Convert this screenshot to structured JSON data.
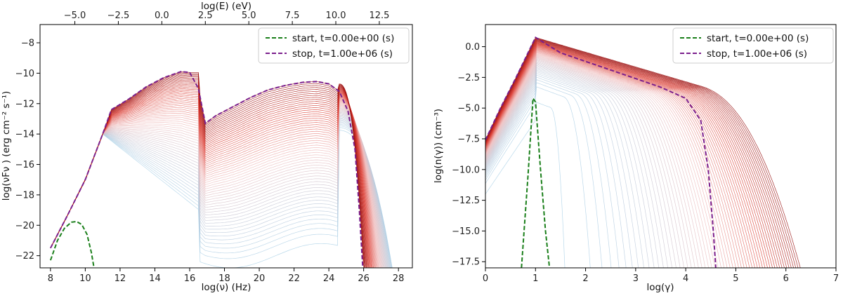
{
  "chart_data": [
    {
      "type": "line",
      "title": "",
      "xlabel": "log(ν)  (Hz)",
      "ylabel": "log(νFν )  (erg cm⁻² s⁻¹)",
      "top_xlabel": "log(E) (eV)",
      "xlim": [
        7.4,
        28.8
      ],
      "ylim": [
        -22.8,
        -6.8
      ],
      "top_xlim": [
        -7.0,
        14.4
      ],
      "x_ticks": [
        8,
        10,
        12,
        14,
        16,
        18,
        20,
        22,
        24,
        26,
        28
      ],
      "y_ticks": [
        -22,
        -20,
        -18,
        -16,
        -14,
        -12,
        -10,
        -8
      ],
      "top_ticks": [
        -5.0,
        -2.5,
        0.0,
        2.5,
        5.0,
        7.5,
        10.0,
        12.5
      ],
      "top_tick_labels": [
        "−5.0",
        "−2.5",
        "0.0",
        "2.5",
        "5.0",
        "7.5",
        "10.0",
        "12.5"
      ],
      "legend_position": "top-right",
      "legend": [
        "start, t=0.00e+00 (s)",
        "stop, t=1.00e+06 (s)"
      ],
      "series": [
        {
          "name": "start, t=0.00e+00 (s)",
          "style": "dashed",
          "color": "#1a7f1a",
          "x": [
            8.0,
            8.4,
            8.8,
            9.2,
            9.5,
            9.8,
            10.1,
            10.35,
            10.5
          ],
          "y": [
            -22.3,
            -21.0,
            -20.2,
            -19.8,
            -19.75,
            -19.95,
            -20.6,
            -21.8,
            -22.8
          ]
        },
        {
          "name": "stop, t=1.00e+06 (s)",
          "style": "dashed",
          "color": "#7b1f8c",
          "x": [
            8.0,
            9.0,
            10.0,
            11.0,
            11.5,
            12.5,
            13.5,
            14.5,
            15.5,
            16.0,
            16.5,
            16.9,
            17.5,
            18.5,
            19.5,
            20.5,
            21.5,
            22.5,
            23.3,
            24.0,
            24.6,
            25.1,
            25.5,
            25.75,
            25.95
          ],
          "y": [
            -21.5,
            -19.3,
            -17.0,
            -14.0,
            -12.4,
            -11.7,
            -10.9,
            -10.3,
            -9.9,
            -9.95,
            -11.0,
            -13.3,
            -12.8,
            -12.2,
            -11.6,
            -11.1,
            -10.8,
            -10.6,
            -10.55,
            -10.7,
            -11.2,
            -12.5,
            -15.0,
            -19.0,
            -22.8
          ]
        }
      ]
    },
    {
      "type": "line",
      "title": "",
      "xlabel": "log(γ)",
      "ylabel": "log(n(γ))   (cm⁻³)",
      "xlim": [
        0,
        7
      ],
      "ylim": [
        -18.0,
        1.8
      ],
      "x_ticks": [
        0,
        1,
        2,
        3,
        4,
        5,
        6,
        7
      ],
      "y_ticks": [
        -17.5,
        -15.0,
        -12.5,
        -10.0,
        -7.5,
        -5.0,
        -2.5,
        0.0
      ],
      "y_tick_labels": [
        "−17.5",
        "−15.0",
        "−12.5",
        "−10.0",
        "−7.5",
        "−5.0",
        "−2.5",
        "0.0"
      ],
      "legend_position": "top-right",
      "legend": [
        "start, t=0.00e+00 (s)",
        "stop, t=1.00e+06 (s)"
      ],
      "series": [
        {
          "name": "start, t=0.00e+00 (s)",
          "style": "dashed",
          "color": "#1a7f1a",
          "x": [
            0.72,
            0.85,
            0.95,
            1.0,
            1.1,
            1.2,
            1.28
          ],
          "y": [
            -18.0,
            -10.5,
            -4.2,
            -4.5,
            -10.0,
            -15.0,
            -18.0
          ]
        },
        {
          "name": "stop, t=1.00e+06 (s)",
          "style": "dashed",
          "color": "#7b1f8c",
          "x": [
            0.0,
            0.3,
            0.6,
            1.0,
            1.5,
            2.0,
            2.5,
            3.0,
            3.5,
            4.0,
            4.3,
            4.45,
            4.55,
            4.6
          ],
          "y": [
            -7.6,
            -5.0,
            -2.6,
            0.75,
            -0.5,
            -1.2,
            -1.9,
            -2.6,
            -3.3,
            -4.2,
            -6.0,
            -10.0,
            -15.0,
            -18.0
          ]
        }
      ]
    }
  ]
}
